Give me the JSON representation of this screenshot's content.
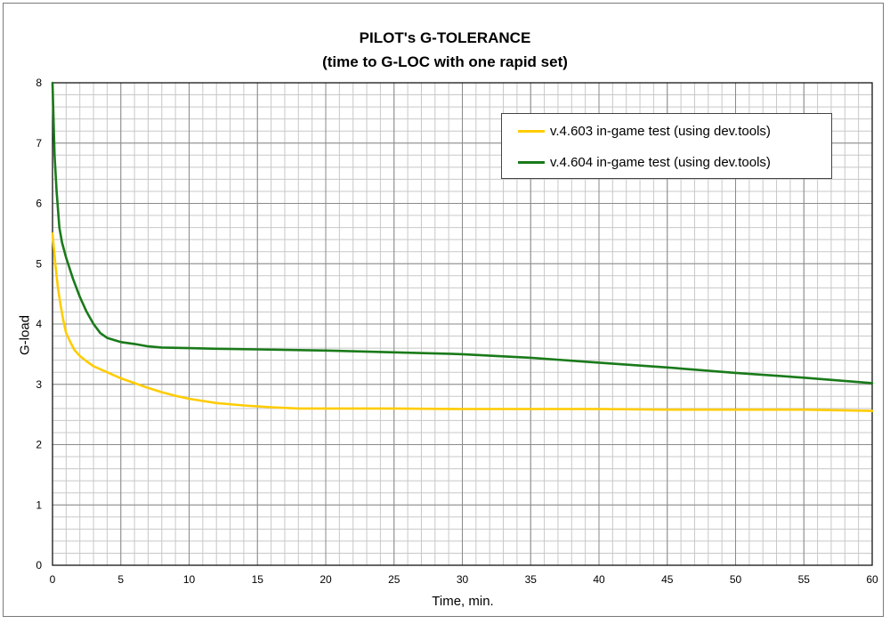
{
  "chart_data": {
    "type": "line",
    "title": "PILOT's G-TOLERANCE",
    "subtitle": "(time to G-LOC with one rapid set)",
    "xlabel": "Time, min.",
    "ylabel": "G-load",
    "xlim": [
      0,
      60
    ],
    "ylim": [
      0,
      8
    ],
    "xticks": [
      0,
      5,
      10,
      15,
      20,
      25,
      30,
      35,
      40,
      45,
      50,
      55,
      60
    ],
    "yticks": [
      0,
      1,
      2,
      3,
      4,
      5,
      6,
      7,
      8
    ],
    "grid": true,
    "legend_position": "top-right",
    "series": [
      {
        "name": "v.4.603 in-game test (using dev.tools)",
        "color": "#ffcc00",
        "x": [
          0,
          0.2,
          0.4,
          0.6,
          0.8,
          1.0,
          1.3,
          1.6,
          2.0,
          2.5,
          3.0,
          4.0,
          5.0,
          6.0,
          7.0,
          8.0,
          9.0,
          10.0,
          12.0,
          14.0,
          16.0,
          18.0,
          20.0,
          25.0,
          30.0,
          35.0,
          40.0,
          45.0,
          50.0,
          55.0,
          60.0
        ],
        "y": [
          5.5,
          5.0,
          4.6,
          4.3,
          4.05,
          3.85,
          3.7,
          3.57,
          3.47,
          3.38,
          3.3,
          3.2,
          3.1,
          3.02,
          2.94,
          2.87,
          2.81,
          2.76,
          2.69,
          2.65,
          2.62,
          2.6,
          2.6,
          2.6,
          2.59,
          2.59,
          2.59,
          2.58,
          2.58,
          2.58,
          2.56
        ]
      },
      {
        "name": "v.4.604 in-game test (using dev.tools)",
        "color": "#1a7a1a",
        "x": [
          0,
          0.15,
          0.3,
          0.5,
          0.7,
          1.0,
          1.5,
          2.0,
          2.5,
          3.0,
          3.5,
          4.0,
          5.0,
          6.0,
          7.0,
          8.0,
          10.0,
          12.0,
          15.0,
          20.0,
          25.0,
          30.0,
          35.0,
          40.0,
          45.0,
          50.0,
          55.0,
          60.0
        ],
        "y": [
          8.0,
          6.8,
          6.2,
          5.6,
          5.35,
          5.1,
          4.75,
          4.45,
          4.2,
          4.0,
          3.85,
          3.77,
          3.7,
          3.67,
          3.63,
          3.61,
          3.6,
          3.59,
          3.58,
          3.56,
          3.53,
          3.5,
          3.44,
          3.36,
          3.28,
          3.19,
          3.11,
          3.02
        ]
      }
    ]
  }
}
